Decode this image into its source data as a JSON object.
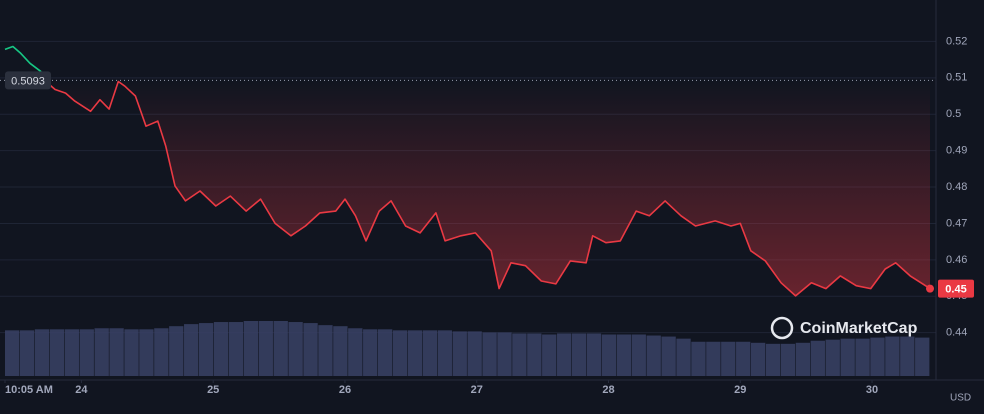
{
  "chart_data": {
    "type": "line",
    "x": [
      23.42,
      23.48,
      23.54,
      23.61,
      23.69,
      23.73,
      23.8,
      23.88,
      23.95,
      24.07,
      24.14,
      24.21,
      24.28,
      24.33,
      24.41,
      24.49,
      24.58,
      24.64,
      24.71,
      24.79,
      24.9,
      25.02,
      25.13,
      25.25,
      25.36,
      25.47,
      25.59,
      25.7,
      25.81,
      25.93,
      26.0,
      26.08,
      26.16,
      26.26,
      26.35,
      26.46,
      26.57,
      26.69,
      26.76,
      26.88,
      26.99,
      27.11,
      27.17,
      27.26,
      27.37,
      27.49,
      27.6,
      27.71,
      27.83,
      27.88,
      27.98,
      28.09,
      28.21,
      28.31,
      28.43,
      28.55,
      28.66,
      28.81,
      28.93,
      29.0,
      29.08,
      29.19,
      29.31,
      29.42,
      29.54,
      29.65,
      29.76,
      29.88,
      29.99,
      30.1,
      30.18,
      30.29,
      30.44
    ],
    "series": [
      {
        "color": "#ea3943",
        "values": [
          0.5178,
          0.5186,
          0.5167,
          0.514,
          0.5118,
          0.509,
          0.5068,
          0.5058,
          0.5036,
          0.5008,
          0.504,
          0.5014,
          0.509,
          0.5077,
          0.505,
          0.4967,
          0.4981,
          0.4912,
          0.4803,
          0.4762,
          0.4789,
          0.4748,
          0.4775,
          0.4734,
          0.4767,
          0.47,
          0.4666,
          0.4693,
          0.4729,
          0.4734,
          0.4767,
          0.4721,
          0.4652,
          0.4734,
          0.4762,
          0.4693,
          0.4674,
          0.4729,
          0.4652,
          0.4666,
          0.4674,
          0.4625,
          0.4521,
          0.4592,
          0.4584,
          0.4542,
          0.4534,
          0.4597,
          0.4592,
          0.4666,
          0.4647,
          0.4652,
          0.4734,
          0.4721,
          0.4762,
          0.4721,
          0.4693,
          0.4707,
          0.4693,
          0.47,
          0.4625,
          0.4597,
          0.4537,
          0.4501,
          0.4537,
          0.4521,
          0.4556,
          0.4529,
          0.4521,
          0.4575,
          0.4592,
          0.4556,
          0.4521
        ]
      }
    ],
    "above_color": "#16c784",
    "reference": 0.5093,
    "current_price": {
      "value": 0.4521,
      "label": "0.45"
    },
    "volume": {
      "color": "#3a4266",
      "values": [
        44,
        44,
        45,
        45,
        45,
        45,
        46,
        46,
        45,
        45,
        46,
        48,
        50,
        51,
        52,
        52,
        53,
        53,
        53,
        52,
        51,
        49,
        48,
        46,
        45,
        45,
        44,
        44,
        44,
        44,
        43,
        43,
        42,
        42,
        41,
        41,
        40,
        41,
        41,
        41,
        40,
        40,
        40,
        39,
        38,
        36,
        33,
        33,
        33,
        33,
        32,
        31,
        31,
        32,
        34,
        35,
        36,
        36,
        37,
        38,
        38,
        37
      ]
    },
    "xlim": [
      23.42,
      30.44
    ],
    "xticks": [
      {
        "value": 23.42,
        "label": "10:05 AM"
      },
      24,
      25,
      26,
      27,
      28,
      29,
      30
    ],
    "ylim": [
      0.427,
      0.53
    ],
    "yticks": [
      0.44,
      0.45,
      0.46,
      0.47,
      0.48,
      0.49,
      0.5,
      0.51,
      0.52
    ],
    "grid": true,
    "currency": "USD",
    "watermark": "CoinMarketCap"
  }
}
